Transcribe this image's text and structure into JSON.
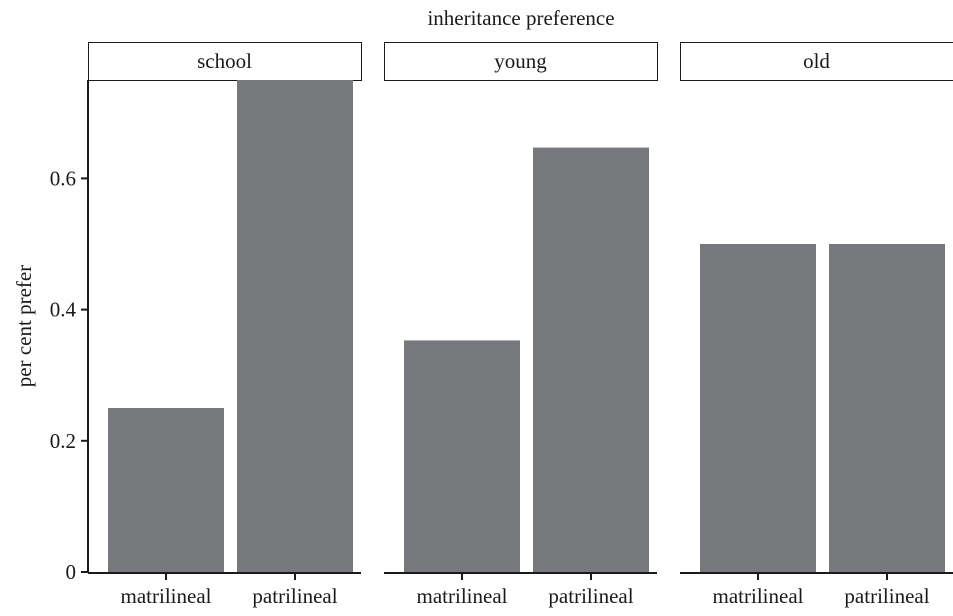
{
  "chart_data": {
    "type": "bar",
    "title": "inheritance preference",
    "ylabel": "per cent prefer",
    "xlabel": "",
    "ylim": [
      0,
      0.75
    ],
    "yticks": [
      {
        "value": 0,
        "label": "0"
      },
      {
        "value": 0.2,
        "label": "0.2"
      },
      {
        "value": 0.4,
        "label": "0.4"
      },
      {
        "value": 0.6,
        "label": "0.6"
      }
    ],
    "categories": [
      "matrilineal",
      "patrilineal"
    ],
    "panels": [
      {
        "name": "school",
        "values": [
          0.25,
          0.75
        ]
      },
      {
        "name": "young",
        "values": [
          0.353,
          0.647
        ]
      },
      {
        "name": "old",
        "values": [
          0.5,
          0.5
        ]
      }
    ],
    "bar_color": "#77787b",
    "grid": false,
    "legend": "none"
  }
}
